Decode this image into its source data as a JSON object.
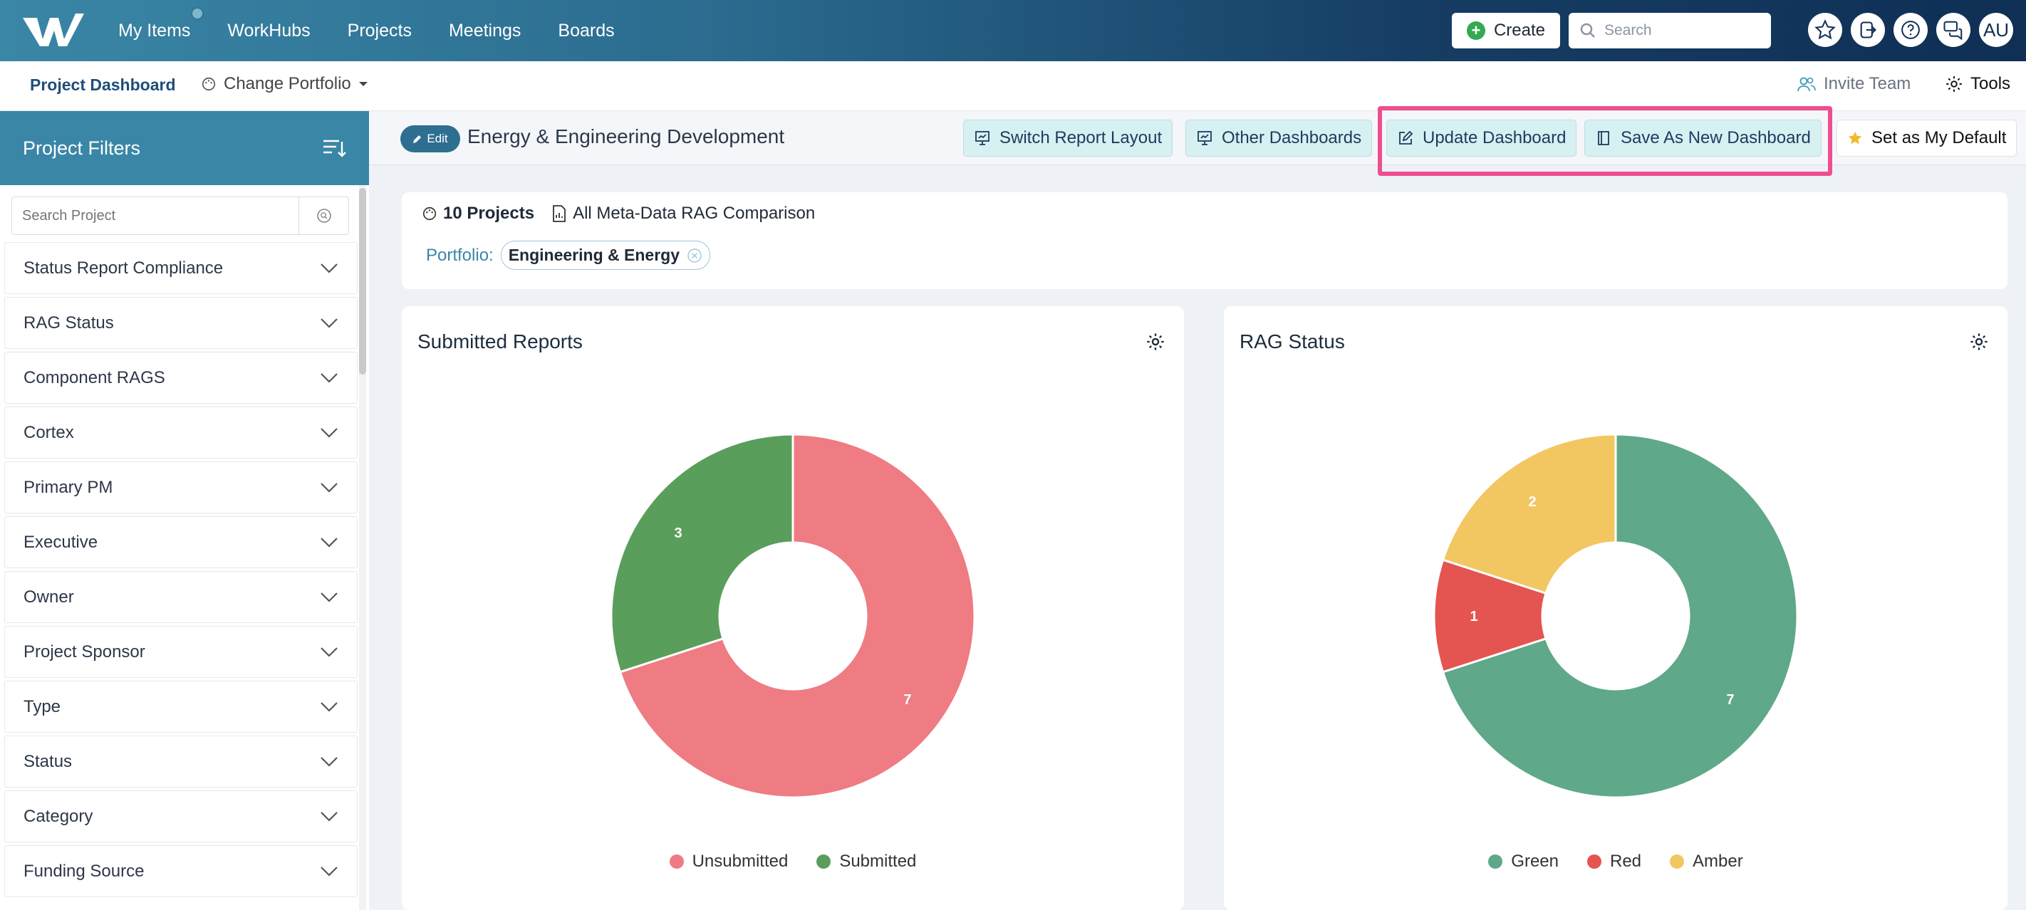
{
  "topnav": {
    "items": [
      "My Items",
      "WorkHubs",
      "Projects",
      "Meetings",
      "Boards"
    ],
    "create_label": "Create",
    "search_placeholder": "Search",
    "avatar_initials": "AU"
  },
  "subnav": {
    "title": "Project Dashboard",
    "change_portfolio": "Change Portfolio",
    "invite_team": "Invite Team",
    "tools": "Tools"
  },
  "sidebar": {
    "title": "Project Filters",
    "search_placeholder": "Search Project",
    "filters": [
      "Status Report Compliance",
      "RAG Status",
      "Component RAGS",
      "Cortex",
      "Primary PM",
      "Executive",
      "Owner",
      "Project Sponsor",
      "Type",
      "Status",
      "Category",
      "Funding Source"
    ]
  },
  "header": {
    "edit_label": "Edit",
    "dashboard_name": "Energy & Engineering Development",
    "buttons": {
      "switch_layout": "Switch Report Layout",
      "other_dashboards": "Other Dashboards",
      "update_dashboard": "Update Dashboard",
      "save_new": "Save As New Dashboard",
      "set_default": "Set as My Default"
    }
  },
  "info": {
    "projects_count": "10 Projects",
    "comparison": "All Meta-Data RAG Comparison",
    "portfolio_label": "Portfolio:",
    "portfolio_value": "Engineering & Energy"
  },
  "colors": {
    "unsubmitted": "#ef7b83",
    "submitted": "#5a9e5c",
    "green": "#5fa88a",
    "red": "#e45450",
    "amber": "#f2c761"
  },
  "chart_data": [
    {
      "type": "pie",
      "title": "Submitted Reports",
      "categories": [
        "Unsubmitted",
        "Submitted"
      ],
      "values": [
        7,
        3
      ],
      "legend": "bottom"
    },
    {
      "type": "pie",
      "title": "RAG Status",
      "categories": [
        "Green",
        "Red",
        "Amber"
      ],
      "values": [
        7,
        1,
        2
      ],
      "legend": "bottom"
    }
  ]
}
